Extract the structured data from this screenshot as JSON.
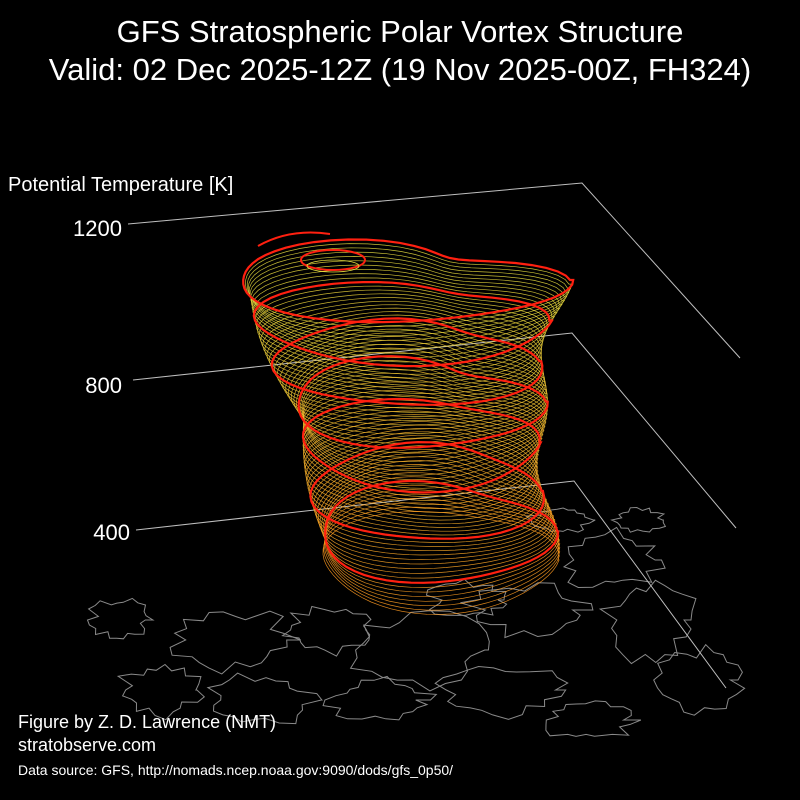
{
  "title_line1": "GFS Stratospheric Polar Vortex Structure",
  "title_line2": "Valid: 02 Dec 2025-12Z  (19 Nov 2025-00Z, FH324)",
  "axis": {
    "label": "Potential Temperature [K]",
    "ticks": [
      "1200",
      "800",
      "400"
    ]
  },
  "credits": {
    "author": "Figure by Z. D. Lawrence (NMT)",
    "site": "stratobserve.com",
    "source": "Data source: GFS, http://nomads.ncep.noaa.gov:9090/dods/gfs_0p50/"
  },
  "colors": {
    "background": "#000000",
    "highlight_contour": "#ff2010",
    "upper_contour": "#e8e040",
    "lower_contour": "#ff9a20",
    "coastline": "#8a8a8a",
    "axis_lines": "#bfbfbf"
  }
}
